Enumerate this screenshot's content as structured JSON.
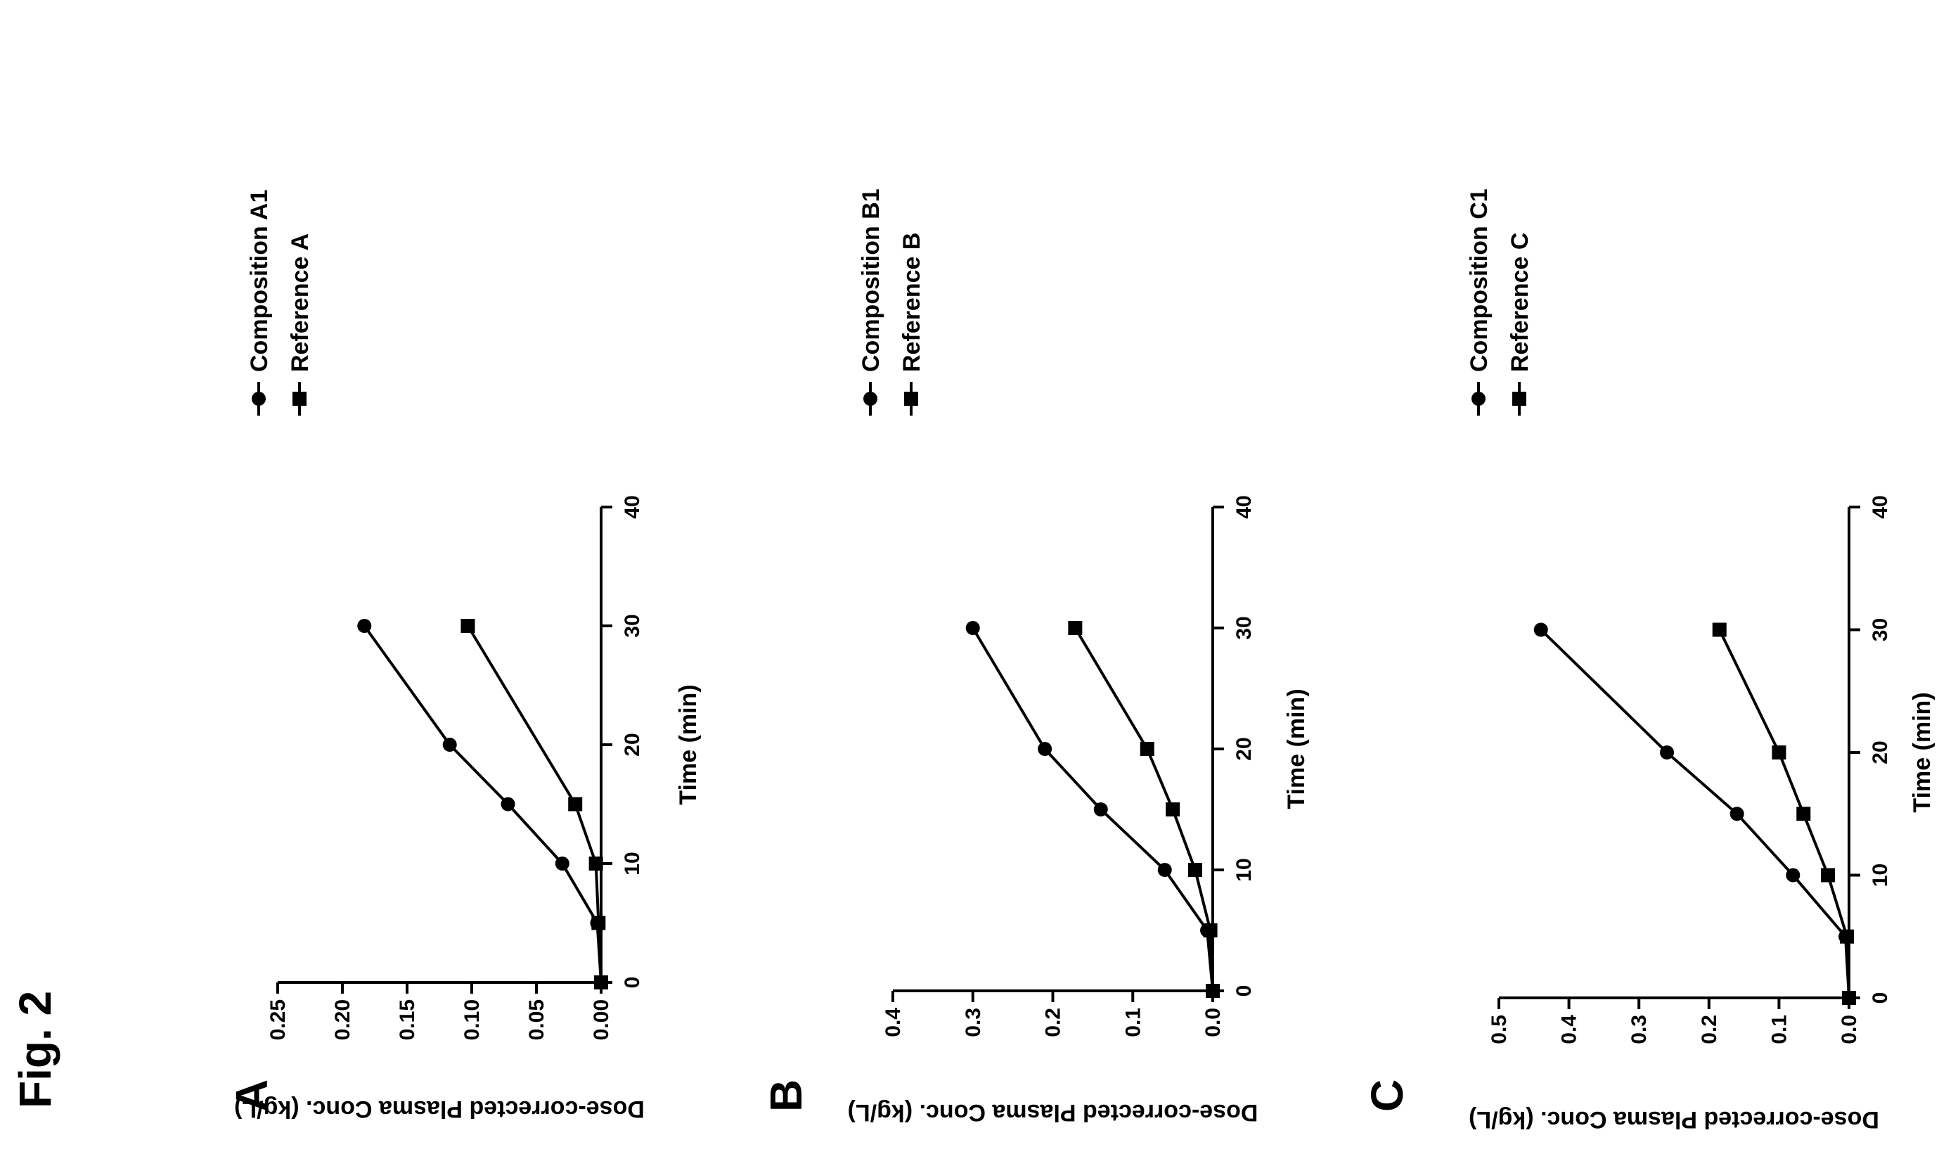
{
  "figure": {
    "title": "Fig. 2"
  },
  "chart_data": [
    {
      "panel": "A",
      "type": "line",
      "xlabel": "Time (min)",
      "ylabel": "Dose-corrected Plasma Conc. (kg/L)",
      "xlim": [
        0,
        40
      ],
      "ylim": [
        0,
        0.25
      ],
      "x_ticks": [
        "0",
        "10",
        "20",
        "30",
        "40"
      ],
      "y_ticks": [
        "0.00",
        "0.05",
        "0.10",
        "0.15",
        "0.20",
        "0.25"
      ],
      "legend": "top-right",
      "grid": false,
      "x": [
        0,
        5,
        10,
        15,
        20,
        30
      ],
      "series": [
        {
          "name": "Composition A1",
          "marker": "circle",
          "values": [
            0.0,
            0.003,
            0.03,
            0.072,
            0.117,
            0.183
          ]
        },
        {
          "name": "Reference A",
          "marker": "square",
          "values": [
            0.0,
            0.002,
            0.004,
            0.02,
            null,
            0.103
          ]
        }
      ]
    },
    {
      "panel": "B",
      "type": "line",
      "xlabel": "Time (min)",
      "ylabel": "Dose-corrected Plasma Conc. (kg/L)",
      "xlim": [
        0,
        40
      ],
      "ylim": [
        0,
        0.4
      ],
      "x_ticks": [
        "0",
        "10",
        "20",
        "30",
        "40"
      ],
      "y_ticks": [
        "0.0",
        "0.1",
        "0.2",
        "0.3",
        "0.4"
      ],
      "legend": "top-right",
      "grid": false,
      "x": [
        0,
        5,
        10,
        15,
        20,
        30
      ],
      "series": [
        {
          "name": "Composition B1",
          "marker": "circle",
          "values": [
            0.0,
            0.007,
            0.06,
            0.14,
            0.21,
            0.3
          ]
        },
        {
          "name": "Reference B",
          "marker": "square",
          "values": [
            0.0,
            0.003,
            0.022,
            0.05,
            0.082,
            0.172
          ]
        }
      ]
    },
    {
      "panel": "C",
      "type": "line",
      "xlabel": "Time (min)",
      "ylabel": "Dose-corrected Plasma Conc. (kg/L)",
      "xlim": [
        0,
        40
      ],
      "ylim": [
        0,
        0.5
      ],
      "x_ticks": [
        "0",
        "10",
        "20",
        "30",
        "40"
      ],
      "y_ticks": [
        "0.0",
        "0.1",
        "0.2",
        "0.3",
        "0.4",
        "0.5"
      ],
      "legend": "top-right",
      "grid": false,
      "x": [
        0,
        5,
        10,
        15,
        20,
        30
      ],
      "series": [
        {
          "name": "Composition C1",
          "marker": "circle",
          "values": [
            0.0,
            0.005,
            0.08,
            0.16,
            0.26,
            0.44
          ]
        },
        {
          "name": "Reference C",
          "marker": "square",
          "values": [
            0.0,
            0.003,
            0.03,
            0.065,
            0.1,
            0.185
          ]
        }
      ]
    }
  ]
}
